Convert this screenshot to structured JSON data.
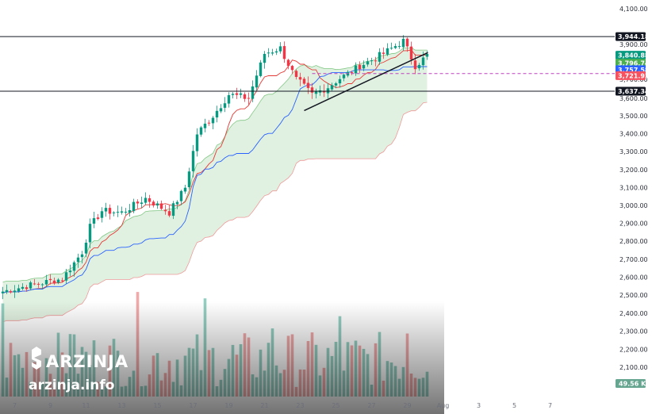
{
  "watermark": {
    "brand": "ARZINJA",
    "url": "arzinja.info"
  },
  "chart_data": {
    "type": "candlestick",
    "ylim": [
      2000,
      4100
    ],
    "y_ticks": [
      "4,100.00",
      "3,900.00",
      "3,700.00",
      "3,600.00",
      "3,500.00",
      "3,400.00",
      "3,300.00",
      "3,200.00",
      "3,100.00",
      "3,000.00",
      "2,900.00",
      "2,800.00",
      "2,700.00",
      "2,600.00",
      "2,500.00",
      "2,400.00",
      "2,300.00",
      "2,200.00",
      "2,100.00"
    ],
    "y_tick_values": [
      4100,
      3900,
      3700,
      3600,
      3500,
      3400,
      3300,
      3200,
      3100,
      3000,
      2900,
      2800,
      2700,
      2600,
      2500,
      2400,
      2300,
      2200,
      2100
    ],
    "x_ticks": [
      "7",
      "9",
      "11",
      "13",
      "15",
      "17",
      "19",
      "21",
      "23",
      "25",
      "27",
      "29",
      "Aug",
      "3",
      "5",
      "7"
    ],
    "x_tick_index": [
      3,
      12,
      21,
      30,
      39,
      48,
      57,
      66,
      75,
      84,
      93,
      102,
      111,
      120,
      129,
      138
    ],
    "horizontal_levels": [
      {
        "label": "3,944.18",
        "value": 3944.18,
        "color": "#131722"
      },
      {
        "label": "3,637.34",
        "value": 3637.34,
        "color": "#131722"
      }
    ],
    "price_tags": [
      {
        "label": "3,840.88",
        "value": 3840.88,
        "color": "#089981"
      },
      {
        "label": "3,796.74",
        "value": 3796.74,
        "color": "#4caf50"
      },
      {
        "label": "3,757.58",
        "value": 3757.58,
        "color": "#2962ff"
      },
      {
        "label": "3,721.93",
        "value": 3721.93,
        "color": "#f7525f"
      }
    ],
    "volume_tag": {
      "label": "49.56 K",
      "color": "#66a690"
    },
    "dashed_level": {
      "value": 3735,
      "color": "#c040c0"
    },
    "trendline": {
      "from": [
        76,
        3530
      ],
      "to": [
        104,
        3855
      ]
    },
    "colors": {
      "up": "#089981",
      "down": "#f23645",
      "tenkan": "#e53935",
      "kijun": "#2962ff",
      "cloud": "#c8e6c9",
      "span_a": "#81c784",
      "span_b": "#ef9a9a",
      "vol_up": "#80c5b5",
      "vol_down": "#ef9a9a"
    }
  }
}
